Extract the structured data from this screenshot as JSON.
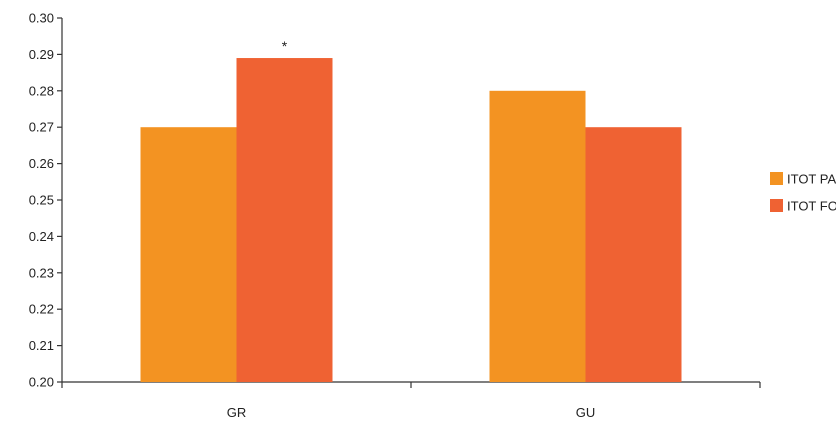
{
  "chart_data": {
    "type": "bar",
    "categories": [
      "GR",
      "GU"
    ],
    "series": [
      {
        "name": "ITOT PA",
        "values": [
          0.27,
          0.28
        ],
        "color": "#F39322"
      },
      {
        "name": "ITOT FO",
        "values": [
          0.289,
          0.27
        ],
        "color": "#EF6233"
      }
    ],
    "ylim": [
      0.2,
      0.3
    ],
    "yticks": [
      0.2,
      0.21,
      0.22,
      0.23,
      0.24,
      0.25,
      0.26,
      0.27,
      0.28,
      0.29,
      0.3
    ],
    "ytick_labels": [
      "0.20",
      "0.21",
      "0.22",
      "0.23",
      "0.24",
      "0.25",
      "0.26",
      "0.27",
      "0.28",
      "0.29",
      "0.30"
    ],
    "annotations": [
      {
        "text": "*",
        "category": "GR",
        "series": "ITOT FO"
      }
    ],
    "legend_position": "right",
    "grid": false,
    "title": "",
    "xlabel": "",
    "ylabel": ""
  }
}
